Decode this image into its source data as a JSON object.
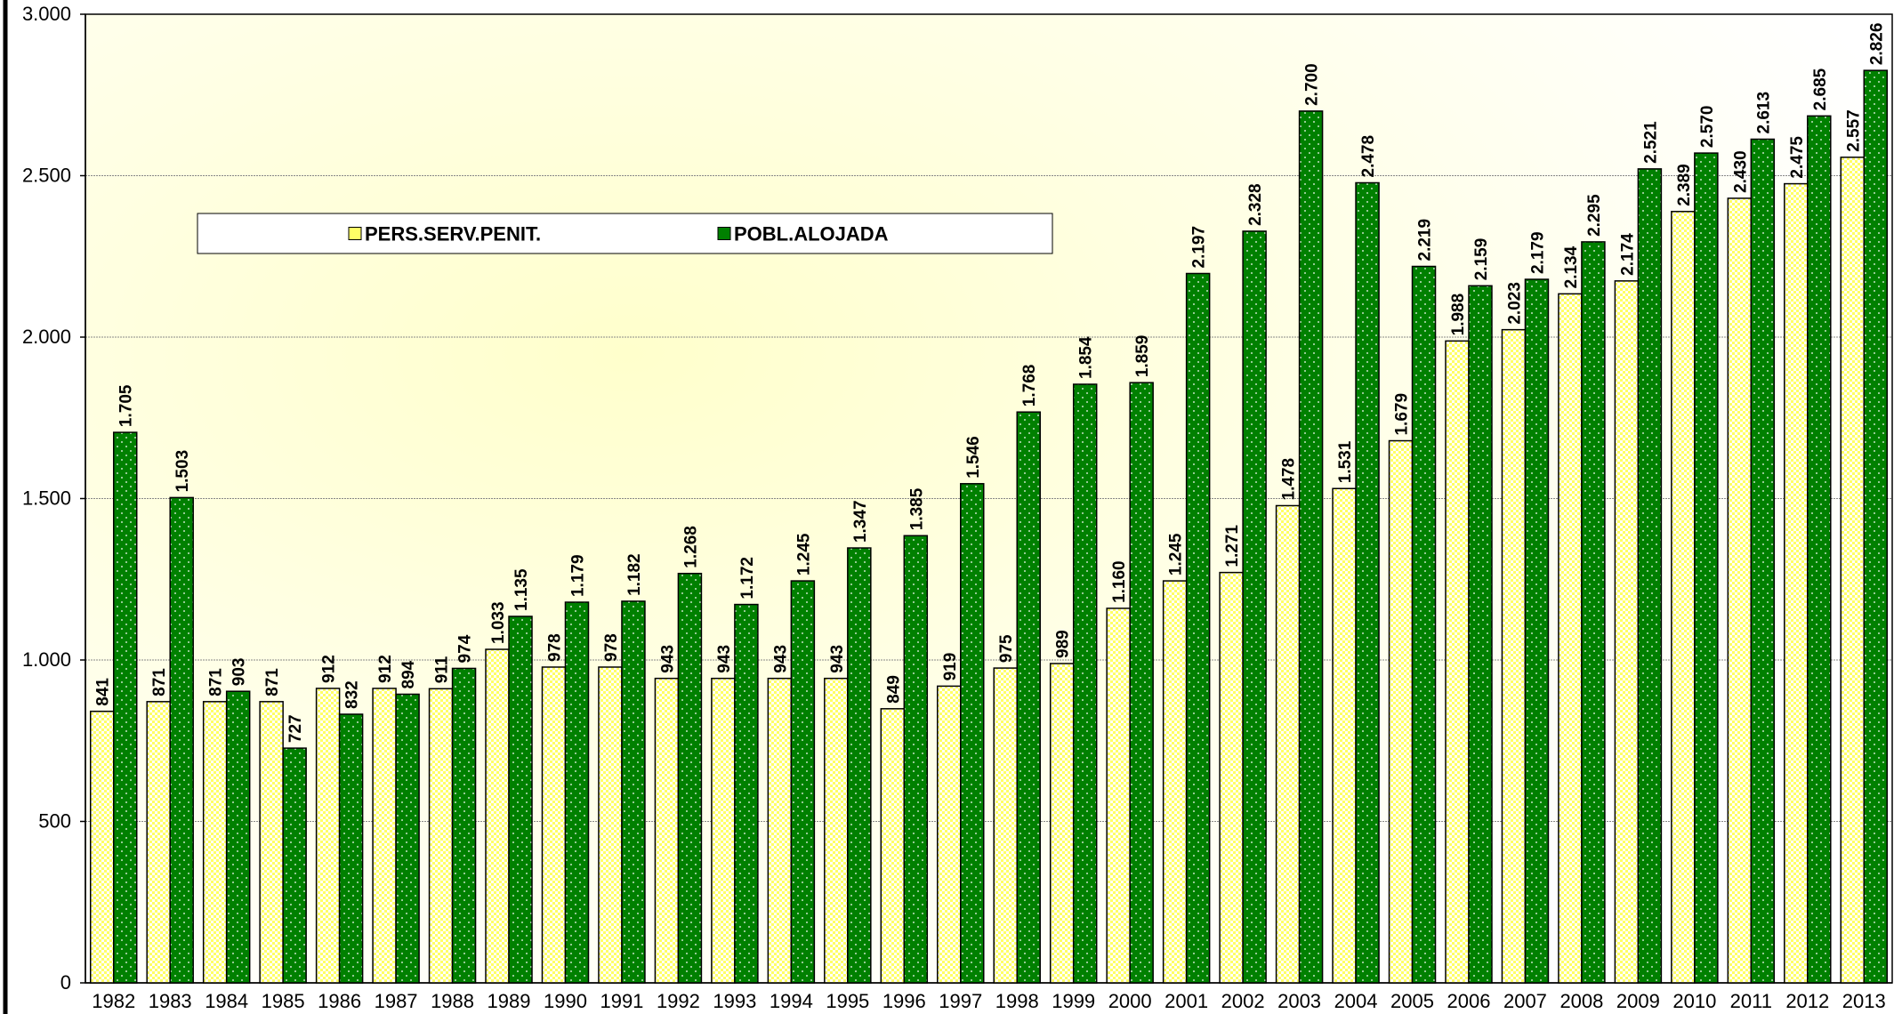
{
  "chart_data": {
    "type": "bar",
    "categories": [
      "1982",
      "1983",
      "1984",
      "1985",
      "1986",
      "1987",
      "1988",
      "1989",
      "1990",
      "1991",
      "1992",
      "1993",
      "1994",
      "1995",
      "1996",
      "1997",
      "1998",
      "1999",
      "2000",
      "2001",
      "2002",
      "2003",
      "2004",
      "2005",
      "2006",
      "2007",
      "2008",
      "2009",
      "2010",
      "2011",
      "2012",
      "2013"
    ],
    "series": [
      {
        "name": "PERS.SERV.PENIT.",
        "color": "#ffff66",
        "values": [
          841,
          871,
          871,
          871,
          912,
          912,
          911,
          1033,
          978,
          978,
          943,
          943,
          943,
          943,
          849,
          919,
          975,
          989,
          1160,
          1245,
          1271,
          1478,
          1531,
          1679,
          1988,
          2023,
          2134,
          2174,
          2389,
          2430,
          2475,
          2557
        ],
        "value_labels": [
          "841",
          "871",
          "871",
          "871",
          "912",
          "912",
          "911",
          "1.033",
          "978",
          "978",
          "943",
          "943",
          "943",
          "943",
          "849",
          "919",
          "975",
          "989",
          "1.160",
          "1.245",
          "1.271",
          "1.478",
          "1.531",
          "1.679",
          "1.988",
          "2.023",
          "2.134",
          "2.174",
          "2.389",
          "2.430",
          "2.475",
          "2.557"
        ]
      },
      {
        "name": "POBL.ALOJADA",
        "color": "#008000",
        "values": [
          1705,
          1503,
          903,
          727,
          832,
          894,
          974,
          1135,
          1179,
          1182,
          1268,
          1172,
          1245,
          1347,
          1385,
          1546,
          1768,
          1854,
          1859,
          2197,
          2328,
          2700,
          2478,
          2219,
          2159,
          2179,
          2295,
          2521,
          2570,
          2613,
          2685,
          2826
        ],
        "value_labels": [
          "1.705",
          "1.503",
          "903",
          "727",
          "832",
          "894",
          "974",
          "1.135",
          "1.179",
          "1.182",
          "1.268",
          "1.172",
          "1.245",
          "1.347",
          "1.385",
          "1.546",
          "1.768",
          "1.854",
          "1.859",
          "2.197",
          "2.328",
          "2.700",
          "2.478",
          "2.219",
          "2.159",
          "2.179",
          "2.295",
          "2.521",
          "2.570",
          "2.613",
          "2.685",
          "2.826"
        ]
      }
    ],
    "ylim": [
      0,
      3000
    ],
    "yticks": [
      0,
      500,
      {
        "value": 1000,
        "label": "1.000"
      },
      {
        "value": 1500,
        "label": "1.500"
      },
      {
        "value": 2000,
        "label": "2.000"
      },
      {
        "value": 2500,
        "label": "2.500"
      },
      {
        "value": 3000,
        "label": "3.000"
      }
    ],
    "grid": true,
    "legend": "top-left"
  }
}
